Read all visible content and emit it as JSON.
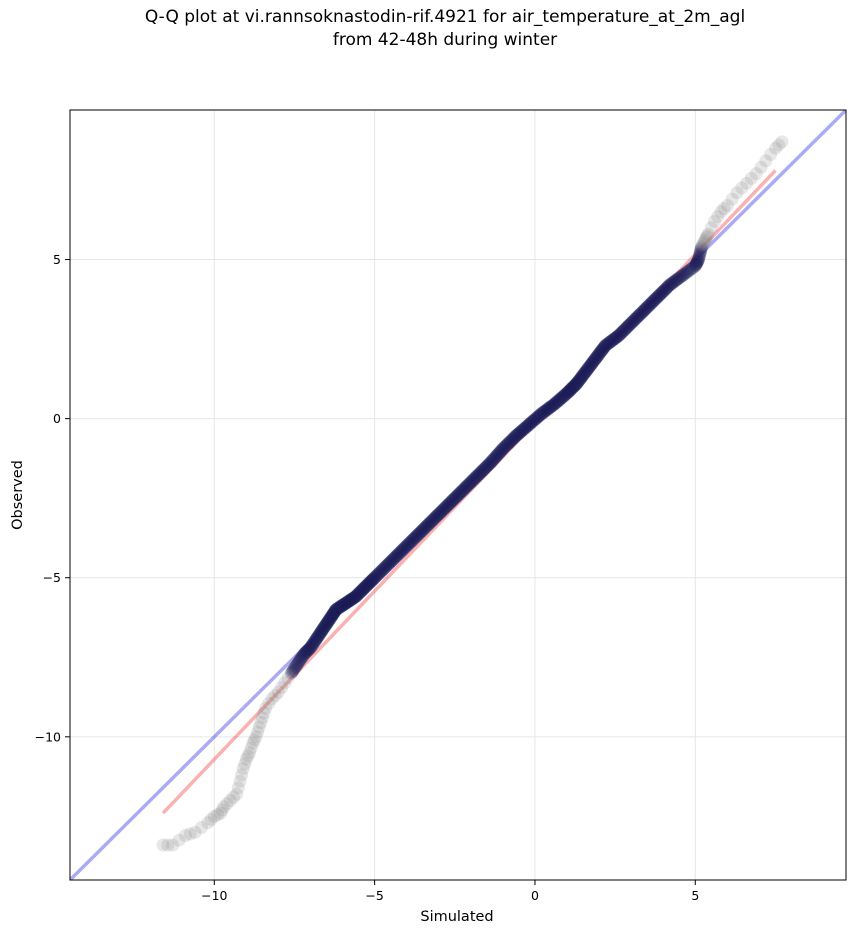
{
  "chart_data": {
    "type": "scatter",
    "title": [
      "Q-Q plot at vi.rannsoknastodin-rif.4921 for air_temperature_at_2m_agl",
      "from 42-48h during winter"
    ],
    "xlabel": "Simulated",
    "ylabel": "Observed",
    "xlim": [
      -14.5,
      9.7
    ],
    "ylim": [
      -14.5,
      9.7
    ],
    "xticks": [
      -10,
      -5,
      0,
      5
    ],
    "yticks": [
      -10,
      -5,
      0,
      5
    ],
    "xtick_labels": [
      "−10",
      "−5",
      "0",
      "5"
    ],
    "ytick_labels": [
      "−10",
      "−5",
      "0",
      "5"
    ],
    "grid": true,
    "reference_line": {
      "kind": "identity",
      "color": "#0000dd",
      "opacity": 0.33
    },
    "fit_line": {
      "x": [
        -11.6,
        7.5
      ],
      "y": [
        -12.4,
        7.8
      ],
      "color": "#ee1111",
      "opacity": 0.33
    },
    "point_color_tail": "#888888",
    "point_color_core": "#1a1a55",
    "quantiles": [
      [
        -11.6,
        -13.4
      ],
      [
        -11.3,
        -13.4
      ],
      [
        -10.9,
        -13.1
      ],
      [
        -10.6,
        -13.0
      ],
      [
        -10.2,
        -12.7
      ],
      [
        -10.0,
        -12.5
      ],
      [
        -9.8,
        -12.4
      ],
      [
        -9.7,
        -12.2
      ],
      [
        -9.5,
        -12.0
      ],
      [
        -9.3,
        -11.8
      ],
      [
        -9.2,
        -11.4
      ],
      [
        -9.1,
        -11.0
      ],
      [
        -9.0,
        -10.7
      ],
      [
        -8.9,
        -10.5
      ],
      [
        -8.8,
        -10.2
      ],
      [
        -8.7,
        -10.0
      ],
      [
        -8.6,
        -9.7
      ],
      [
        -8.5,
        -9.4
      ],
      [
        -8.4,
        -9.1
      ],
      [
        -8.2,
        -8.8
      ],
      [
        -8.0,
        -8.6
      ],
      [
        -7.8,
        -8.3
      ],
      [
        -7.6,
        -8.0
      ],
      [
        -7.4,
        -7.7
      ],
      [
        -7.2,
        -7.4
      ],
      [
        -7.0,
        -7.2
      ],
      [
        -6.8,
        -6.9
      ],
      [
        -6.6,
        -6.6
      ],
      [
        -6.4,
        -6.3
      ],
      [
        -6.2,
        -6.0
      ],
      [
        -5.9,
        -5.8
      ],
      [
        -5.6,
        -5.6
      ],
      [
        -5.3,
        -5.3
      ],
      [
        -5.0,
        -5.0
      ],
      [
        -4.6,
        -4.6
      ],
      [
        -4.2,
        -4.2
      ],
      [
        -3.8,
        -3.8
      ],
      [
        -3.4,
        -3.4
      ],
      [
        -3.0,
        -3.0
      ],
      [
        -2.6,
        -2.6
      ],
      [
        -2.2,
        -2.2
      ],
      [
        -1.8,
        -1.8
      ],
      [
        -1.4,
        -1.4
      ],
      [
        -1.0,
        -0.95
      ],
      [
        -0.6,
        -0.55
      ],
      [
        -0.2,
        -0.2
      ],
      [
        0.2,
        0.15
      ],
      [
        0.6,
        0.45
      ],
      [
        1.0,
        0.8
      ],
      [
        1.3,
        1.1
      ],
      [
        1.6,
        1.5
      ],
      [
        1.9,
        1.9
      ],
      [
        2.2,
        2.3
      ],
      [
        2.6,
        2.6
      ],
      [
        3.0,
        3.0
      ],
      [
        3.4,
        3.4
      ],
      [
        3.8,
        3.8
      ],
      [
        4.2,
        4.2
      ],
      [
        4.6,
        4.5
      ],
      [
        5.0,
        4.8
      ],
      [
        5.1,
        5.0
      ],
      [
        5.2,
        5.4
      ],
      [
        5.4,
        5.8
      ],
      [
        5.6,
        6.2
      ],
      [
        5.8,
        6.5
      ],
      [
        6.0,
        6.7
      ],
      [
        6.3,
        7.1
      ],
      [
        6.6,
        7.4
      ],
      [
        6.9,
        7.7
      ],
      [
        7.2,
        8.1
      ],
      [
        7.5,
        8.5
      ],
      [
        7.7,
        8.7
      ]
    ]
  }
}
